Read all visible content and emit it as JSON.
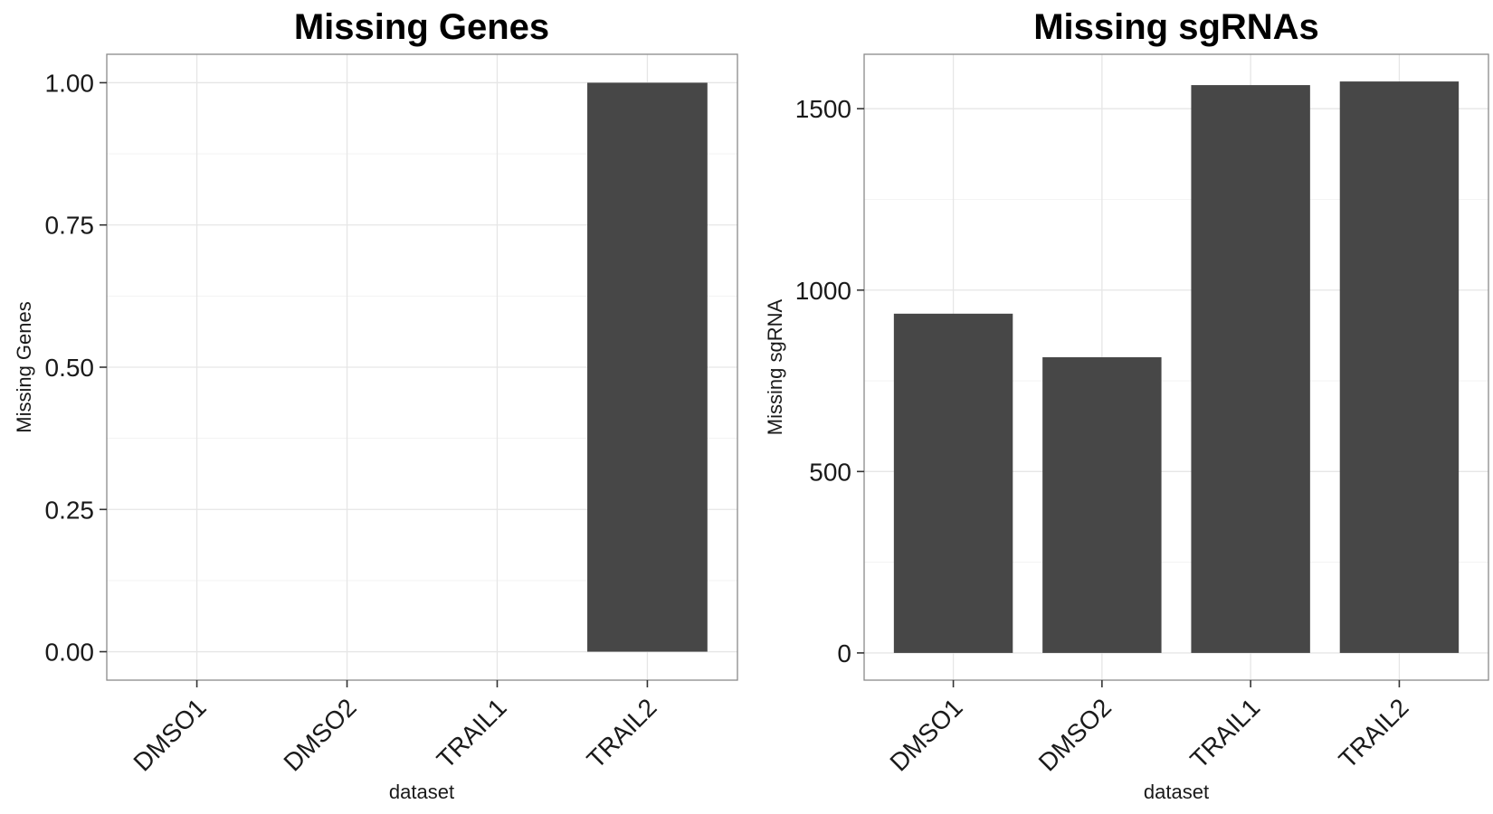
{
  "chart_data": [
    {
      "type": "bar",
      "title": "Missing Genes",
      "xlabel": "dataset",
      "ylabel": "Missing Genes",
      "categories": [
        "DMSO1",
        "DMSO2",
        "TRAIL1",
        "TRAIL2"
      ],
      "values": [
        0,
        0,
        0,
        1
      ],
      "ylim": [
        -0.05,
        1.05
      ],
      "yticks": [
        0,
        0.25,
        0.5,
        0.75,
        1
      ],
      "ytick_labels": [
        "0.00",
        "0.25",
        "0.50",
        "0.75",
        "1.00"
      ],
      "bar_color": "#474747",
      "grid": true,
      "legend": "none"
    },
    {
      "type": "bar",
      "title": "Missing sgRNAs",
      "xlabel": "dataset",
      "ylabel": "Missing sgRNA",
      "categories": [
        "DMSO1",
        "DMSO2",
        "TRAIL1",
        "TRAIL2"
      ],
      "values": [
        935,
        815,
        1565,
        1575
      ],
      "ylim": [
        -75,
        1650
      ],
      "yticks": [
        0,
        500,
        1000,
        1500
      ],
      "ytick_labels": [
        "0",
        "500",
        "1000",
        "1500"
      ],
      "bar_color": "#474747",
      "grid": true,
      "legend": "none"
    }
  ]
}
